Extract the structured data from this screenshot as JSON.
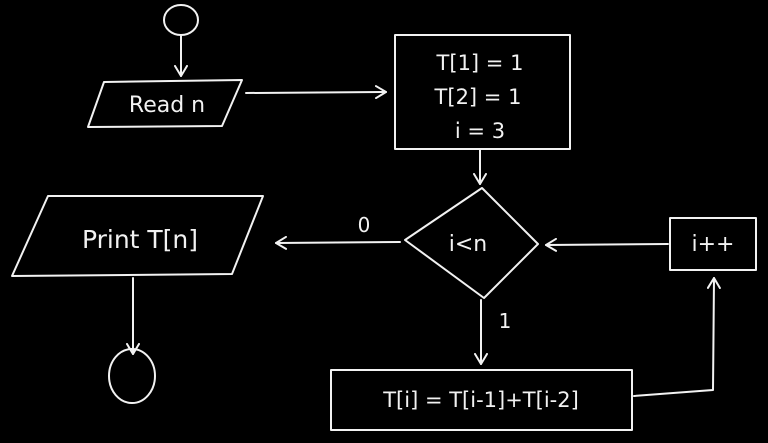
{
  "diagram": {
    "title": "",
    "colors": {
      "background": "#000000",
      "ink": "#f2f2f2"
    },
    "nodes": {
      "start": {
        "shape": "circle",
        "text": ""
      },
      "read": {
        "shape": "parallelogram",
        "text": "Read n"
      },
      "init": {
        "shape": "rectangle",
        "lines": [
          "T[1] = 1",
          "T[2] = 1",
          "i = 3"
        ]
      },
      "decision": {
        "shape": "diamond",
        "text": "i<n"
      },
      "print": {
        "shape": "parallelogram",
        "text": "Print T[n]"
      },
      "increment": {
        "shape": "rectangle",
        "text": "i++"
      },
      "compute": {
        "shape": "rectangle",
        "text": "T[i] = T[i-1]+T[i-2]"
      },
      "end": {
        "shape": "circle",
        "text": ""
      }
    },
    "edges": {
      "false_label": "0",
      "true_label": "1"
    }
  }
}
